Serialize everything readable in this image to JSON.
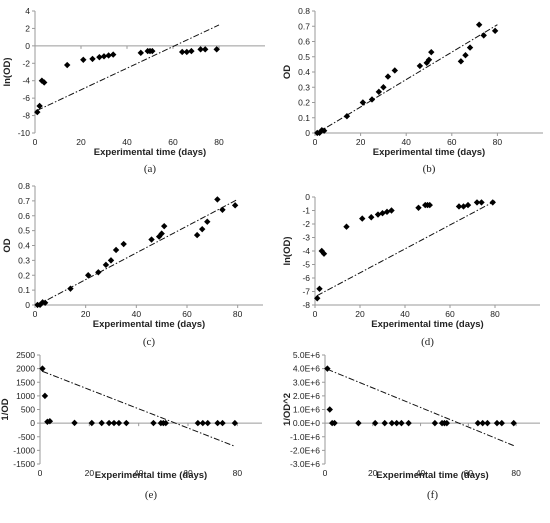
{
  "chart_data": [
    {
      "type": "scatter",
      "xlabel": "Experimental time (days)",
      "ylabel": "ln(OD)",
      "caption": "(a)",
      "xlim": [
        0,
        100
      ],
      "ylim": [
        -10,
        4
      ],
      "xticks": [
        "0",
        "20",
        "40",
        "60",
        "80"
      ],
      "yticks": [
        "-10",
        "-8",
        "-6",
        "-4",
        "-2",
        "0",
        "2",
        "4"
      ],
      "grid": false,
      "series": [
        {
          "x": [
            1,
            2,
            3,
            4,
            14,
            21,
            25,
            28,
            30,
            32,
            34,
            46,
            49,
            50,
            51,
            64,
            66,
            68,
            72,
            74,
            79
          ],
          "y": [
            -7.6,
            -6.9,
            -4.0,
            -4.2,
            -2.2,
            -1.6,
            -1.5,
            -1.3,
            -1.2,
            -1.1,
            -1.0,
            -0.8,
            -0.6,
            -0.6,
            -0.6,
            -0.7,
            -0.7,
            -0.6,
            -0.4,
            -0.4,
            -0.4
          ]
        }
      ],
      "trendline": {
        "x": [
          1,
          80
        ],
        "y": [
          -7.4,
          2.4
        ]
      }
    },
    {
      "type": "scatter",
      "xlabel": "Experimental time (days)",
      "ylabel": "OD",
      "caption": "(b)",
      "xlim": [
        0,
        100
      ],
      "ylim": [
        0,
        0.8
      ],
      "xticks": [
        "0",
        "20",
        "40",
        "60",
        "80"
      ],
      "yticks": [
        "0",
        "0.1",
        "0.2",
        "0.3",
        "0.4",
        "0.5",
        "0.6",
        "0.7",
        "0.8"
      ],
      "grid": false,
      "series": [
        {
          "x": [
            1,
            2,
            3,
            4,
            14,
            21,
            25,
            28,
            30,
            32,
            35,
            46,
            49,
            50,
            51,
            64,
            66,
            68,
            72,
            74,
            79
          ],
          "y": [
            0.0005,
            0.001,
            0.018,
            0.015,
            0.11,
            0.2,
            0.22,
            0.27,
            0.3,
            0.37,
            0.41,
            0.44,
            0.46,
            0.48,
            0.53,
            0.47,
            0.51,
            0.56,
            0.71,
            0.64,
            0.67
          ]
        }
      ],
      "trendline": {
        "x": [
          1,
          80
        ],
        "y": [
          0.0,
          0.71
        ]
      }
    },
    {
      "type": "scatter",
      "xlabel": "Experimental time (days)",
      "ylabel": "OD",
      "caption": "(c)",
      "xlim": [
        0,
        90
      ],
      "ylim": [
        0,
        0.8
      ],
      "xticks": [
        "0",
        "20",
        "40",
        "60",
        "80"
      ],
      "yticks": [
        "0",
        "0.1",
        "0.2",
        "0.3",
        "0.4",
        "0.5",
        "0.6",
        "0.7",
        "0.8"
      ],
      "grid": false,
      "series": [
        {
          "x": [
            1,
            2,
            3,
            4,
            14,
            21,
            25,
            28,
            30,
            32,
            35,
            46,
            49,
            50,
            51,
            64,
            66,
            68,
            72,
            74,
            79
          ],
          "y": [
            0.0005,
            0.001,
            0.018,
            0.015,
            0.11,
            0.2,
            0.22,
            0.27,
            0.3,
            0.37,
            0.41,
            0.44,
            0.46,
            0.48,
            0.53,
            0.47,
            0.51,
            0.56,
            0.71,
            0.64,
            0.67
          ]
        }
      ],
      "trendline": {
        "x": [
          1,
          80
        ],
        "y": [
          0.0,
          0.71
        ]
      }
    },
    {
      "type": "scatter",
      "xlabel": "Experimental time (days)",
      "ylabel": "ln(OD)",
      "caption": "(d)",
      "xlim": [
        0,
        100
      ],
      "ylim": [
        -8,
        0
      ],
      "xticks": [
        "0",
        "20",
        "40",
        "60",
        "80"
      ],
      "yticks": [
        "-8",
        "-7",
        "-6",
        "-5",
        "-4",
        "-3",
        "-2",
        "-1",
        "0"
      ],
      "grid": false,
      "series": [
        {
          "x": [
            1,
            2,
            3,
            4,
            14,
            21,
            25,
            28,
            30,
            32,
            34,
            46,
            49,
            50,
            51,
            64,
            66,
            68,
            72,
            74,
            79
          ],
          "y": [
            -7.5,
            -6.8,
            -4.0,
            -4.2,
            -2.2,
            -1.6,
            -1.5,
            -1.3,
            -1.2,
            -1.1,
            -1.0,
            -0.8,
            -0.6,
            -0.6,
            -0.6,
            -0.7,
            -0.7,
            -0.6,
            -0.4,
            -0.4,
            -0.4
          ]
        }
      ],
      "trendline": {
        "x": [
          1,
          80
        ],
        "y": [
          -7.3,
          -0.3
        ]
      }
    },
    {
      "type": "scatter",
      "xlabel": "Experimental time (days)",
      "ylabel": "1/OD",
      "caption": "(e)",
      "xlim": [
        0,
        90
      ],
      "ylim": [
        -1500,
        2500
      ],
      "xticks": [
        "0",
        "20",
        "40",
        "60",
        "80"
      ],
      "yticks": [
        "-1500",
        "-1000",
        "-500",
        "0",
        "500",
        "1000",
        "1500",
        "2000",
        "2500"
      ],
      "grid": false,
      "series": [
        {
          "x": [
            1,
            2,
            3,
            4,
            14,
            21,
            25,
            28,
            30,
            32,
            35,
            46,
            49,
            50,
            51,
            64,
            66,
            68,
            72,
            74,
            79
          ],
          "y": [
            2000,
            1000,
            50,
            70,
            9,
            5,
            4.5,
            3.7,
            3.3,
            2.7,
            2.4,
            2.3,
            2.2,
            2.1,
            1.9,
            2.1,
            2.0,
            1.8,
            1.4,
            1.6,
            1.5
          ]
        }
      ],
      "trendline": {
        "x": [
          1,
          79
        ],
        "y": [
          1900,
          -850
        ]
      }
    },
    {
      "type": "scatter",
      "xlabel": "Experimental time (days)",
      "ylabel": "1/OD^2",
      "caption": "(f)",
      "xlim": [
        0,
        90
      ],
      "ylim": [
        -3000000,
        5000000
      ],
      "xticks": [
        "0",
        "20",
        "40",
        "60",
        "80"
      ],
      "yticks": [
        "-3.0E+6",
        "-2.0E+6",
        "-1.0E+6",
        "0.0E+0",
        "1.0E+6",
        "2.0E+6",
        "3.0E+6",
        "4.0E+6",
        "5.0E+6"
      ],
      "grid": false,
      "series": [
        {
          "x": [
            1,
            2,
            3,
            4,
            14,
            21,
            25,
            28,
            30,
            32,
            35,
            46,
            49,
            50,
            51,
            64,
            66,
            68,
            72,
            74,
            79
          ],
          "y": [
            4000000,
            1000000,
            2500,
            4900,
            81,
            25,
            20,
            14,
            11,
            7,
            6,
            5,
            5,
            4,
            4,
            4,
            4,
            3,
            2,
            3,
            2
          ]
        }
      ],
      "trendline": {
        "x": [
          1,
          79
        ],
        "y": [
          3950000,
          -1650000
        ]
      }
    }
  ]
}
